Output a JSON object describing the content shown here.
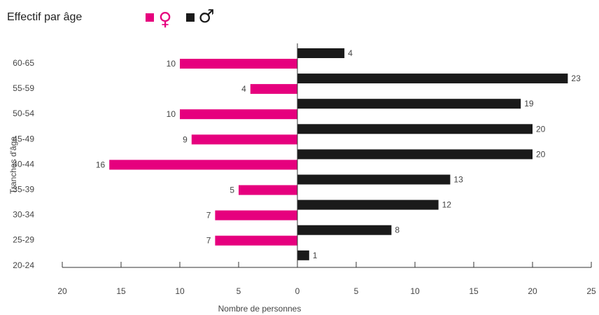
{
  "chart_data": {
    "type": "bar",
    "orientation": "horizontal",
    "title": "Effectif par âge",
    "xlabel": "Nombre de personnes",
    "ylabel": "Tranches d'âge",
    "categories": [
      "60-65",
      "55-59",
      "50-54",
      "45-49",
      "40-44",
      "35-39",
      "30-34",
      "25-29",
      "20-24"
    ],
    "series": [
      {
        "name": "♀",
        "color": "#e6007e",
        "direction": "left",
        "values": [
          10,
          4,
          10,
          9,
          16,
          5,
          7,
          7,
          0
        ]
      },
      {
        "name": "♂",
        "color": "#1a1a1a",
        "direction": "right",
        "values": [
          4,
          23,
          19,
          20,
          20,
          13,
          12,
          8,
          1
        ]
      }
    ],
    "x_ticks": [
      "20",
      "15",
      "10",
      "5",
      "0",
      "5",
      "10",
      "15",
      "20",
      "25"
    ],
    "xlim": [
      -20,
      25
    ],
    "grid": false,
    "legend_position": "top"
  }
}
